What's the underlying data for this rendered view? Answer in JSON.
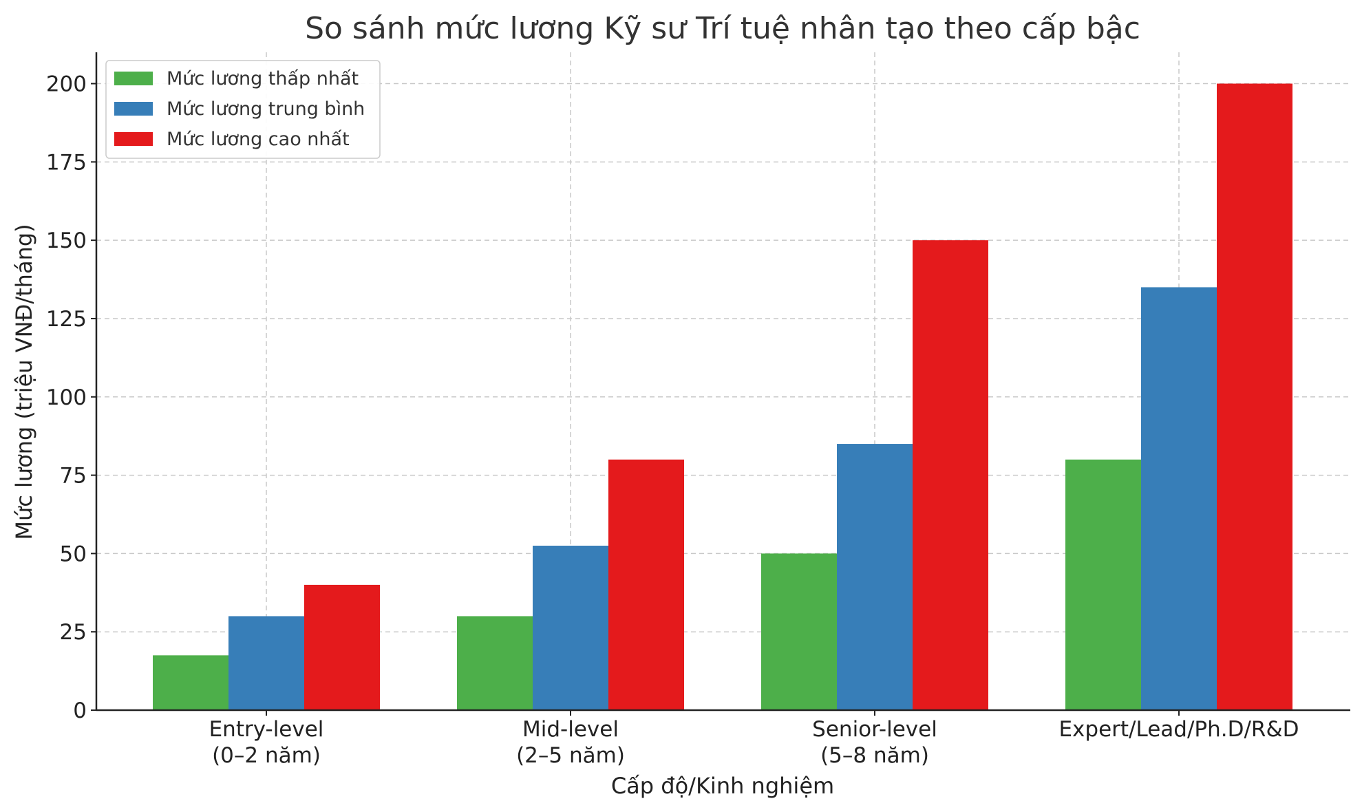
{
  "chart_data": {
    "type": "bar",
    "title": "So sánh mức lương Kỹ sư Trí tuệ nhân tạo theo cấp bậc",
    "xlabel": "Cấp độ/Kinh nghiệm",
    "ylabel": "Mức lương (triệu VNĐ/tháng)",
    "ylim": [
      0,
      210
    ],
    "yticks": [
      0,
      25,
      50,
      75,
      100,
      125,
      150,
      175,
      200
    ],
    "grid": true,
    "legend_position": "top-left",
    "categories": [
      [
        "Entry-level",
        "(0–2 năm)"
      ],
      [
        "Mid-level",
        "(2–5 năm)"
      ],
      [
        "Senior-level",
        "(5–8 năm)"
      ],
      [
        "Expert/Lead/Ph.D/R&D"
      ]
    ],
    "series": [
      {
        "name": "Mức lương thấp nhất",
        "color": "#4daf4a",
        "values": [
          17.5,
          30,
          50,
          80
        ]
      },
      {
        "name": "Mức lương trung bình",
        "color": "#377eb8",
        "values": [
          30,
          52.5,
          85,
          135
        ]
      },
      {
        "name": "Mức lương cao nhất",
        "color": "#e41a1c",
        "values": [
          40,
          80,
          150,
          200
        ]
      }
    ]
  }
}
